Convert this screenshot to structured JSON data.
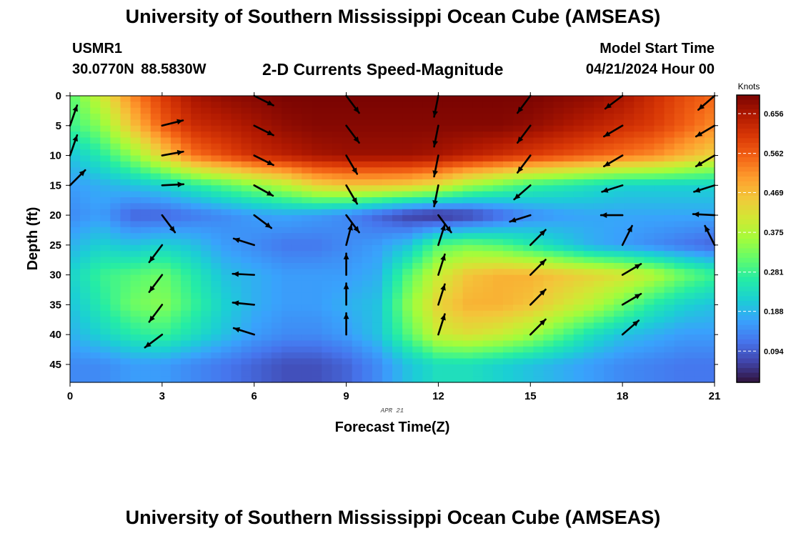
{
  "header": {
    "title": "University of Southern Mississippi Ocean Cube (AMSEAS)",
    "station_id": "USMR1",
    "station_coords": "30.0770N  88.5830W",
    "product_title": "2-D Currents Speed-Magnitude",
    "model_start_label": "Model Start Time",
    "model_start_value": "04/21/2024 Hour 00"
  },
  "footer": {
    "title": "University of Southern Mississippi Ocean Cube (AMSEAS)"
  },
  "chart_data": {
    "type": "heatmap",
    "title": "2-D Currents Speed-Magnitude",
    "xlabel": "Forecast Time(Z)",
    "ylabel": "Depth (ft)",
    "date_label": "APR 21",
    "colorbar_label": "Knots",
    "xlim": [
      0,
      21
    ],
    "ylim": [
      48,
      0
    ],
    "x_ticks": [
      0,
      3,
      6,
      9,
      12,
      15,
      18,
      21
    ],
    "y_ticks": [
      0,
      5,
      10,
      15,
      20,
      25,
      30,
      35,
      40,
      45
    ],
    "colorbar_range": [
      0.02,
      0.7
    ],
    "colorbar_ticks": [
      0.094,
      0.188,
      0.281,
      0.375,
      0.469,
      0.562,
      0.656
    ],
    "colorbar_tick_labels": [
      "0.094",
      "0.188",
      "0.281",
      "0.375",
      "0.469",
      "0.562",
      "0.656"
    ],
    "colormap": [
      "#30123b",
      "#4145ab",
      "#4675ed",
      "#39a2fc",
      "#1bcfd4",
      "#24eca6",
      "#61fc6c",
      "#a4fc3b",
      "#d1e834",
      "#f3c63a",
      "#fe9b2d",
      "#f36315",
      "#d93806",
      "#b11901",
      "#7a0402"
    ],
    "x_grid": [
      0,
      1,
      2,
      3,
      4,
      5,
      6,
      7,
      8,
      9,
      10,
      11,
      12,
      13,
      14,
      15,
      16,
      17,
      18,
      19,
      20,
      21
    ],
    "depth_grid": [
      0,
      5,
      10,
      15,
      20,
      25,
      30,
      35,
      40,
      45
    ],
    "speed_rows": [
      [
        0.3,
        0.4,
        0.52,
        0.6,
        0.66,
        0.68,
        0.69,
        0.7,
        0.7,
        0.7,
        0.7,
        0.7,
        0.7,
        0.7,
        0.7,
        0.7,
        0.69,
        0.68,
        0.66,
        0.62,
        0.58,
        0.55
      ],
      [
        0.28,
        0.34,
        0.46,
        0.56,
        0.62,
        0.64,
        0.66,
        0.68,
        0.69,
        0.69,
        0.69,
        0.69,
        0.69,
        0.69,
        0.69,
        0.68,
        0.66,
        0.64,
        0.62,
        0.6,
        0.56,
        0.52
      ],
      [
        0.2,
        0.26,
        0.34,
        0.44,
        0.54,
        0.58,
        0.62,
        0.64,
        0.66,
        0.67,
        0.67,
        0.67,
        0.66,
        0.64,
        0.62,
        0.6,
        0.58,
        0.56,
        0.54,
        0.52,
        0.48,
        0.44
      ],
      [
        0.16,
        0.18,
        0.2,
        0.22,
        0.26,
        0.3,
        0.34,
        0.38,
        0.44,
        0.46,
        0.46,
        0.45,
        0.42,
        0.36,
        0.32,
        0.28,
        0.26,
        0.24,
        0.22,
        0.22,
        0.22,
        0.22
      ],
      [
        0.14,
        0.16,
        0.1,
        0.1,
        0.12,
        0.14,
        0.16,
        0.17,
        0.16,
        0.14,
        0.1,
        0.06,
        0.04,
        0.06,
        0.1,
        0.14,
        0.16,
        0.17,
        0.17,
        0.17,
        0.17,
        0.17
      ],
      [
        0.18,
        0.22,
        0.2,
        0.22,
        0.2,
        0.16,
        0.14,
        0.12,
        0.12,
        0.14,
        0.16,
        0.2,
        0.3,
        0.32,
        0.3,
        0.26,
        0.22,
        0.18,
        0.16,
        0.14,
        0.12,
        0.1
      ],
      [
        0.22,
        0.28,
        0.3,
        0.32,
        0.26,
        0.2,
        0.18,
        0.16,
        0.16,
        0.16,
        0.18,
        0.3,
        0.4,
        0.46,
        0.48,
        0.48,
        0.46,
        0.44,
        0.42,
        0.38,
        0.32,
        0.28
      ],
      [
        0.2,
        0.26,
        0.32,
        0.34,
        0.28,
        0.22,
        0.18,
        0.16,
        0.16,
        0.18,
        0.2,
        0.34,
        0.44,
        0.48,
        0.48,
        0.46,
        0.42,
        0.38,
        0.32,
        0.26,
        0.22,
        0.2
      ],
      [
        0.18,
        0.22,
        0.26,
        0.28,
        0.24,
        0.2,
        0.16,
        0.14,
        0.14,
        0.16,
        0.2,
        0.3,
        0.4,
        0.42,
        0.4,
        0.36,
        0.3,
        0.24,
        0.2,
        0.18,
        0.16,
        0.16
      ],
      [
        0.14,
        0.14,
        0.16,
        0.16,
        0.14,
        0.12,
        0.1,
        0.08,
        0.08,
        0.1,
        0.14,
        0.2,
        0.24,
        0.24,
        0.22,
        0.2,
        0.18,
        0.16,
        0.14,
        0.13,
        0.12,
        0.12
      ]
    ],
    "vectors": [
      {
        "x": 0,
        "d": 5,
        "u": 0.35,
        "v": 1
      },
      {
        "x": 0,
        "d": 10,
        "u": 0.35,
        "v": 1
      },
      {
        "x": 0,
        "d": 15,
        "u": 0.7,
        "v": 0.7
      },
      {
        "x": 3,
        "d": 5,
        "u": 1,
        "v": 0.25
      },
      {
        "x": 3,
        "d": 10,
        "u": 1,
        "v": 0.18
      },
      {
        "x": 3,
        "d": 15,
        "u": 1,
        "v": 0.05
      },
      {
        "x": 3,
        "d": 20,
        "u": 0.6,
        "v": -0.8
      },
      {
        "x": 3,
        "d": 25,
        "u": -0.6,
        "v": -0.8
      },
      {
        "x": 3,
        "d": 30,
        "u": -0.6,
        "v": -0.8
      },
      {
        "x": 3,
        "d": 35,
        "u": -0.6,
        "v": -0.8
      },
      {
        "x": 3,
        "d": 40,
        "u": -0.8,
        "v": -0.6
      },
      {
        "x": 6,
        "d": 0,
        "u": 0.9,
        "v": -0.45
      },
      {
        "x": 6,
        "d": 5,
        "u": 0.9,
        "v": -0.45
      },
      {
        "x": 6,
        "d": 10,
        "u": 0.9,
        "v": -0.45
      },
      {
        "x": 6,
        "d": 15,
        "u": 0.9,
        "v": -0.5
      },
      {
        "x": 6,
        "d": 20,
        "u": 0.8,
        "v": -0.6
      },
      {
        "x": 6,
        "d": 25,
        "u": -0.95,
        "v": 0.3
      },
      {
        "x": 6,
        "d": 30,
        "u": -1,
        "v": 0.05
      },
      {
        "x": 6,
        "d": 35,
        "u": -1,
        "v": 0.1
      },
      {
        "x": 6,
        "d": 40,
        "u": -0.95,
        "v": 0.3
      },
      {
        "x": 9,
        "d": 0,
        "u": 0.6,
        "v": -0.8
      },
      {
        "x": 9,
        "d": 5,
        "u": 0.6,
        "v": -0.8
      },
      {
        "x": 9,
        "d": 10,
        "u": 0.5,
        "v": -0.85
      },
      {
        "x": 9,
        "d": 15,
        "u": 0.5,
        "v": -0.85
      },
      {
        "x": 9,
        "d": 20,
        "u": 0.6,
        "v": -0.8
      },
      {
        "x": 9,
        "d": 25,
        "u": 0.25,
        "v": 0.97
      },
      {
        "x": 9,
        "d": 30,
        "u": 0,
        "v": 1
      },
      {
        "x": 9,
        "d": 35,
        "u": 0,
        "v": 1
      },
      {
        "x": 9,
        "d": 40,
        "u": 0,
        "v": 1
      },
      {
        "x": 12,
        "d": 0,
        "u": -0.2,
        "v": -1
      },
      {
        "x": 12,
        "d": 5,
        "u": -0.2,
        "v": -1
      },
      {
        "x": 12,
        "d": 10,
        "u": -0.2,
        "v": -1
      },
      {
        "x": 12,
        "d": 15,
        "u": -0.2,
        "v": -1
      },
      {
        "x": 12,
        "d": 20,
        "u": 0.6,
        "v": -0.8
      },
      {
        "x": 12,
        "d": 25,
        "u": 0.3,
        "v": 0.95
      },
      {
        "x": 12,
        "d": 30,
        "u": 0.3,
        "v": 0.95
      },
      {
        "x": 12,
        "d": 35,
        "u": 0.3,
        "v": 0.95
      },
      {
        "x": 12,
        "d": 40,
        "u": 0.3,
        "v": 0.95
      },
      {
        "x": 15,
        "d": 0,
        "u": -0.6,
        "v": -0.8
      },
      {
        "x": 15,
        "d": 5,
        "u": -0.6,
        "v": -0.8
      },
      {
        "x": 15,
        "d": 10,
        "u": -0.6,
        "v": -0.8
      },
      {
        "x": 15,
        "d": 15,
        "u": -0.75,
        "v": -0.65
      },
      {
        "x": 15,
        "d": 20,
        "u": -0.95,
        "v": -0.3
      },
      {
        "x": 15,
        "d": 25,
        "u": 0.7,
        "v": 0.7
      },
      {
        "x": 15,
        "d": 30,
        "u": 0.7,
        "v": 0.7
      },
      {
        "x": 15,
        "d": 35,
        "u": 0.7,
        "v": 0.7
      },
      {
        "x": 15,
        "d": 40,
        "u": 0.7,
        "v": 0.7
      },
      {
        "x": 18,
        "d": 0,
        "u": -0.8,
        "v": -0.6
      },
      {
        "x": 18,
        "d": 5,
        "u": -0.85,
        "v": -0.5
      },
      {
        "x": 18,
        "d": 10,
        "u": -0.85,
        "v": -0.5
      },
      {
        "x": 18,
        "d": 15,
        "u": -0.95,
        "v": -0.3
      },
      {
        "x": 18,
        "d": 20,
        "u": -1,
        "v": 0
      },
      {
        "x": 18,
        "d": 25,
        "u": 0.45,
        "v": 0.9
      },
      {
        "x": 18,
        "d": 30,
        "u": 0.85,
        "v": 0.5
      },
      {
        "x": 18,
        "d": 35,
        "u": 0.85,
        "v": 0.5
      },
      {
        "x": 18,
        "d": 40,
        "u": 0.75,
        "v": 0.65
      },
      {
        "x": 21,
        "d": 0,
        "u": -0.75,
        "v": -0.65
      },
      {
        "x": 21,
        "d": 5,
        "u": -0.85,
        "v": -0.5
      },
      {
        "x": 21,
        "d": 10,
        "u": -0.85,
        "v": -0.5
      },
      {
        "x": 21,
        "d": 15,
        "u": -0.95,
        "v": -0.3
      },
      {
        "x": 21,
        "d": 20,
        "u": -1,
        "v": 0.05
      },
      {
        "x": 21,
        "d": 25,
        "u": -0.45,
        "v": 0.9
      }
    ]
  }
}
